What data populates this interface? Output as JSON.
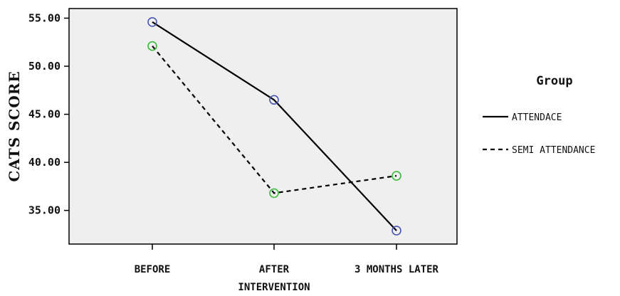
{
  "chart_data": {
    "type": "line",
    "categories": [
      "BEFORE",
      "AFTER\nINTERVENTION",
      "3 MONTHS LATER"
    ],
    "ylabel": "CATS SCORE",
    "xlabel": "",
    "ylim": [
      31.5,
      56.0
    ],
    "yticks": [
      "35.00",
      "40.00",
      "45.00",
      "50.00",
      "55.00"
    ],
    "plot_background": "#efefef",
    "grid": false,
    "legend": {
      "title": "Group",
      "position": "right"
    },
    "series": [
      {
        "name": "ATTENDACE",
        "values": [
          54.6,
          46.5,
          32.9
        ],
        "line_style": "solid",
        "marker_color": "#4a56b4",
        "line_color": "#000000"
      },
      {
        "name": "SEMI ATTENDANCE",
        "values": [
          52.1,
          36.8,
          38.6
        ],
        "line_style": "dashed",
        "marker_color": "#3dbb3d",
        "line_color": "#000000"
      }
    ]
  }
}
